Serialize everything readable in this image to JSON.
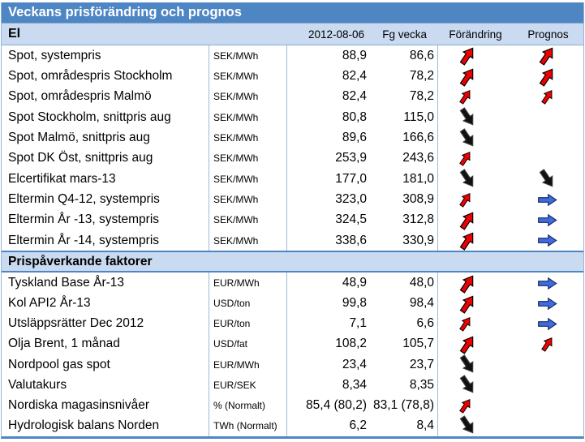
{
  "title": "Veckans prisförändring och prognos",
  "header": {
    "date": "2012-08-06",
    "prev_week": "Fg vecka",
    "change": "Förändring",
    "forecast": "Prognos"
  },
  "colors": {
    "title_bar_blue": "#4E86C4",
    "section_bg_blue": "#C9DAF1",
    "grid_line_blue": "#9FB9D8",
    "arrow_red": "#EE0000",
    "arrow_black": "#111111",
    "arrow_blue": "#3E6BE0"
  },
  "arrow_legend": {
    "up-red": "price increased / forecast up",
    "down-black": "price decreased / forecast down",
    "right-blue": "forecast unchanged"
  },
  "chart_data": {
    "type": "table",
    "title": "Veckans prisförändring och prognos",
    "columns": [
      "2012-08-06",
      "Fg vecka",
      "Förändring",
      "Prognos"
    ],
    "sections": [
      {
        "name": "El",
        "rows": [
          {
            "label": "Spot, systempris",
            "unit": "SEK/MWh",
            "value": "88,9",
            "prev": "86,6",
            "change": "up-red-lg",
            "forecast": "up-red-lg"
          },
          {
            "label": "Spot, områdespris Stockholm",
            "unit": "SEK/MWh",
            "value": "82,4",
            "prev": "78,2",
            "change": "up-red-lg",
            "forecast": "up-red-lg"
          },
          {
            "label": "Spot, områdespris Malmö",
            "unit": "SEK/MWh",
            "value": "82,4",
            "prev": "78,2",
            "change": "up-red-sm",
            "forecast": "up-red-sm"
          },
          {
            "label": "Spot Stockholm, snittpris aug",
            "unit": "SEK/MWh",
            "value": "80,8",
            "prev": "115,0",
            "change": "down-black-lg",
            "forecast": null
          },
          {
            "label": "Spot Malmö, snittpris aug",
            "unit": "SEK/MWh",
            "value": "89,6",
            "prev": "166,6",
            "change": "down-black-lg",
            "forecast": null
          },
          {
            "label": "Spot DK Öst, snittpris aug",
            "unit": "SEK/MWh",
            "value": "253,9",
            "prev": "243,6",
            "change": "up-red-sm",
            "forecast": null
          },
          {
            "label": "Elcertifikat mars-13",
            "unit": "SEK/MWh",
            "value": "177,0",
            "prev": "181,0",
            "change": "down-black-lg",
            "forecast": "down-black-lg"
          },
          {
            "label": "Eltermin Q4-12, systempris",
            "unit": "SEK/MWh",
            "value": "323,0",
            "prev": "308,9",
            "change": "up-red-sm",
            "forecast": "right-blue-lg"
          },
          {
            "label": "Eltermin År -13, systempris",
            "unit": "SEK/MWh",
            "value": "324,5",
            "prev": "312,8",
            "change": "up-red-lg",
            "forecast": "right-blue-lg"
          },
          {
            "label": "Eltermin År -14, systempris",
            "unit": "SEK/MWh",
            "value": "338,6",
            "prev": "330,9",
            "change": "up-red-lg",
            "forecast": "right-blue-lg"
          }
        ]
      },
      {
        "name": "Prispåverkande faktorer",
        "rows": [
          {
            "label": "Tyskland Base År-13",
            "unit": "EUR/MWh",
            "value": "48,9",
            "prev": "48,0",
            "change": "up-red-lg",
            "forecast": "right-blue-lg"
          },
          {
            "label": "Kol API2 År-13",
            "unit": "USD/ton",
            "value": "99,8",
            "prev": "98,4",
            "change": "up-red-lg",
            "forecast": "right-blue-lg"
          },
          {
            "label": "Utsläppsrätter Dec 2012",
            "unit": "EUR/ton",
            "value": "7,1",
            "prev": "6,6",
            "change": "up-red-sm",
            "forecast": "right-blue-lg"
          },
          {
            "label": "Olja Brent, 1 månad",
            "unit": "USD/fat",
            "value": "108,2",
            "prev": "105,7",
            "change": "up-red-lg",
            "forecast": "up-red-sm"
          },
          {
            "label": "Nordpool gas spot",
            "unit": "EUR/MWh",
            "value": "23,4",
            "prev": "23,7",
            "change": "down-black-lg",
            "forecast": null
          },
          {
            "label": "Valutakurs",
            "unit": "EUR/SEK",
            "value": "8,34",
            "prev": "8,35",
            "change": "down-black-lg",
            "forecast": null
          },
          {
            "label": "Nordiska magasinsnivåer",
            "unit": "% (Normalt)",
            "value": "85,4 (80,2)",
            "prev": "83,1 (78,8)",
            "change": "up-red-sm",
            "forecast": null
          },
          {
            "label": "Hydrologisk balans Norden",
            "unit": "TWh (Normalt)",
            "value": "6,2",
            "prev": "8,4",
            "change": "down-black-lg",
            "forecast": null
          }
        ]
      }
    ]
  }
}
